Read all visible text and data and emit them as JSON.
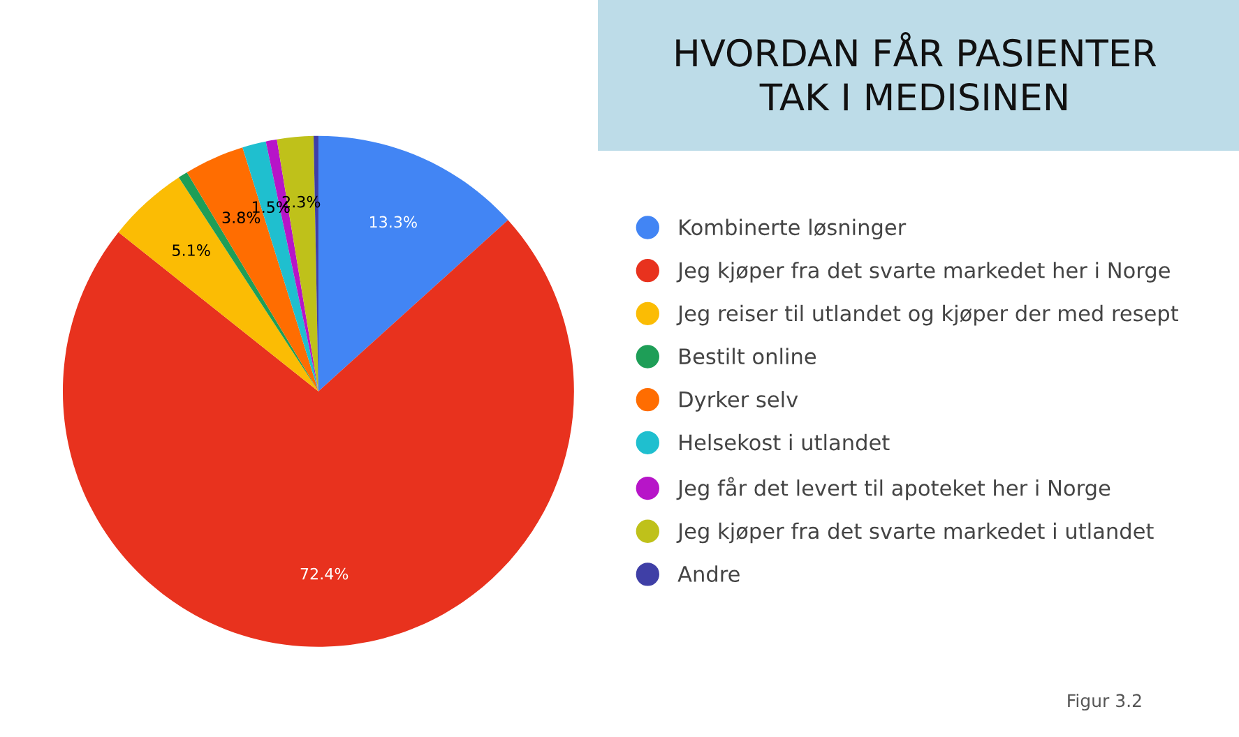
{
  "chart_data": {
    "type": "pie",
    "title": "HVORDAN FÅR PASIENTER\nTAK I MEDISINEN",
    "categories": [
      "Kombinerte løsninger",
      "Jeg kjøper fra det svarte markedet her i Norge",
      "Jeg reiser til utlandet og kjøper der med resept",
      "Bestilt online",
      "Dyrker selv",
      "Helsekost i utlandet",
      "Jeg får det levert til apoteket her i Norge",
      "Jeg kjøper fra det svarte markedet i utlandet",
      "Andre"
    ],
    "values": [
      13.3,
      72.4,
      5.1,
      0.6,
      3.8,
      1.5,
      0.7,
      2.3,
      0.3
    ],
    "colors": [
      "#4285f4",
      "#e8321e",
      "#fbbc04",
      "#1e9e57",
      "#ff6d01",
      "#1fbfcf",
      "#b715c8",
      "#bfc11a",
      "#3f3fa6"
    ],
    "value_labels": [
      "13.3%",
      "72.4%",
      "5.1%",
      null,
      "3.8%",
      "1.5%",
      null,
      "2.3%",
      null
    ],
    "legend": "right",
    "annotations": [
      "Figur 3.2"
    ]
  }
}
